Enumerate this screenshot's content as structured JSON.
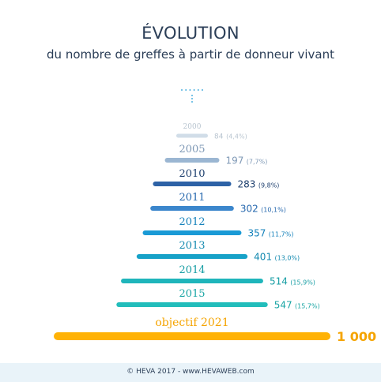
{
  "header": {
    "title": "ÉVOLUTION",
    "subtitle": "du nombre de greffes à partir de donneur vivant"
  },
  "footer": {
    "text": "© HEVA 2017 - www.HEVAWEB.com"
  },
  "chart_data": {
    "type": "bar",
    "orientation": "horizontal-centered",
    "xlim": [
      0,
      1000
    ],
    "bars": [
      {
        "label": "2000",
        "value": 84,
        "value_label": "84",
        "pct_label": "(4,4%)",
        "color": "#d1dde8",
        "label_color": "#b9c5d0",
        "value_color": "#b9c5d0"
      },
      {
        "label": "2005",
        "value": 197,
        "value_label": "197",
        "pct_label": "(7,7%)",
        "color": "#9bb6d2",
        "label_color": "#7f99b6",
        "value_color": "#7f99b6"
      },
      {
        "label": "2010",
        "value": 283,
        "value_label": "283",
        "pct_label": "(9,8%)",
        "color": "#2d62a6",
        "label_color": "#1d3f6e",
        "value_color": "#1d3f6e"
      },
      {
        "label": "2011",
        "value": 302,
        "value_label": "302",
        "pct_label": "(10,1%)",
        "color": "#3b86cc",
        "label_color": "#2668ae",
        "value_color": "#2668ae"
      },
      {
        "label": "2012",
        "value": 357,
        "value_label": "357",
        "pct_label": "(11,7%)",
        "color": "#1a9ad6",
        "label_color": "#1682bb",
        "value_color": "#1682bb"
      },
      {
        "label": "2013",
        "value": 401,
        "value_label": "401",
        "pct_label": "(13,0%)",
        "color": "#17a2c8",
        "label_color": "#138ab0",
        "value_color": "#138ab0"
      },
      {
        "label": "2014",
        "value": 514,
        "value_label": "514",
        "pct_label": "(15,9%)",
        "color": "#1fb5bb",
        "label_color": "#179ea4",
        "value_color": "#179ea4"
      },
      {
        "label": "2015",
        "value": 547,
        "value_label": "547",
        "pct_label": "(15,7%)",
        "color": "#22bdbb",
        "label_color": "#19a5a4",
        "value_color": "#19a5a4"
      },
      {
        "label": "objectif 2021",
        "value": 1000,
        "value_label": "1 000",
        "pct_label": "",
        "color": "#ffb206",
        "label_color": "#f5a400",
        "value_color": "#f5a400"
      }
    ]
  }
}
